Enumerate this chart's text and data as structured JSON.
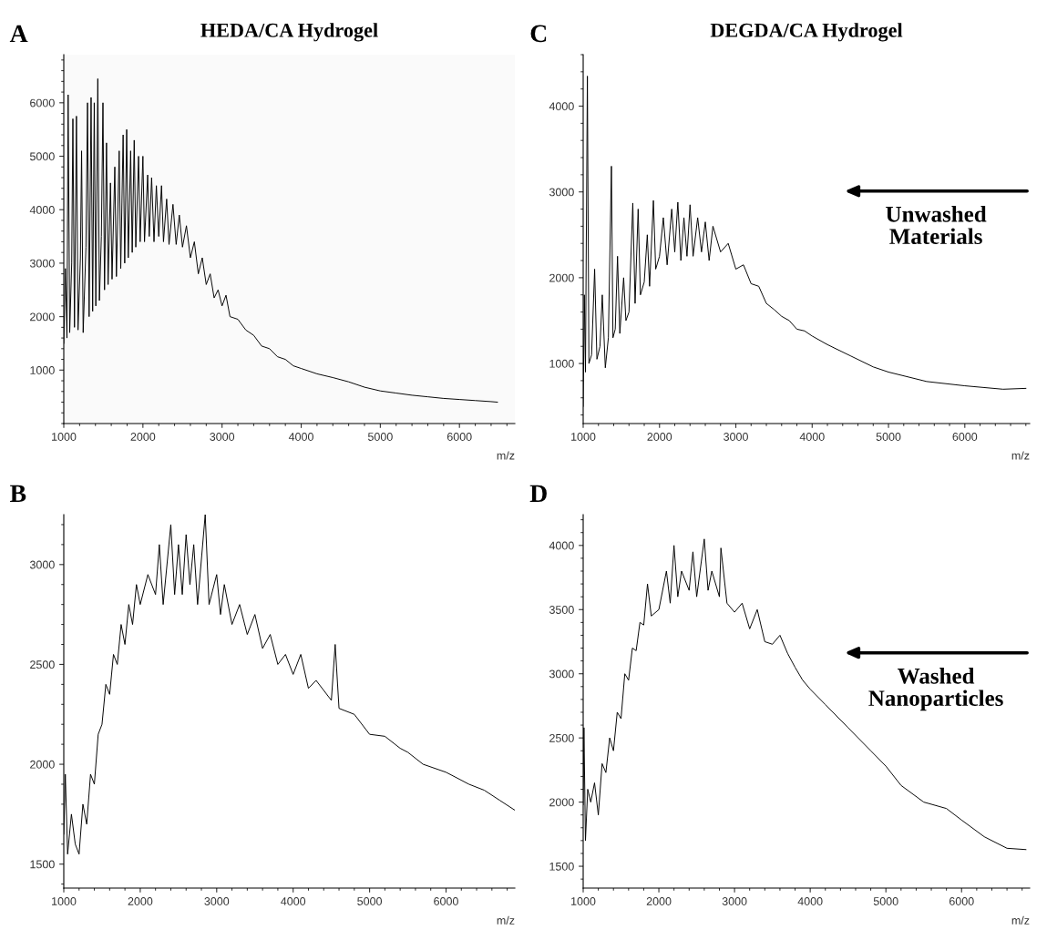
{
  "chart_data": [
    {
      "type": "line",
      "title": "HEDA/CA Hydrogel",
      "xlabel": "m/z",
      "annotations": [
        "A"
      ],
      "xlim": [
        1000,
        6700
      ],
      "ylim": [
        0,
        6900
      ],
      "xticks": [
        1000,
        2000,
        3000,
        4000,
        5000,
        6000
      ],
      "yticks": [
        1000,
        2000,
        3000,
        4000,
        5000,
        6000
      ],
      "x": [
        1000,
        1020,
        1040,
        1055,
        1075,
        1100,
        1115,
        1135,
        1160,
        1180,
        1210,
        1225,
        1245,
        1280,
        1300,
        1320,
        1345,
        1365,
        1385,
        1405,
        1430,
        1450,
        1475,
        1495,
        1515,
        1540,
        1560,
        1590,
        1610,
        1645,
        1665,
        1700,
        1720,
        1750,
        1770,
        1795,
        1815,
        1845,
        1865,
        1890,
        1910,
        1945,
        1965,
        2000,
        2020,
        2060,
        2080,
        2110,
        2140,
        2170,
        2200,
        2235,
        2260,
        2300,
        2330,
        2380,
        2420,
        2460,
        2500,
        2550,
        2600,
        2650,
        2700,
        2750,
        2800,
        2850,
        2900,
        2950,
        3000,
        3050,
        3100,
        3200,
        3300,
        3400,
        3500,
        3600,
        3700,
        3800,
        3900,
        4000,
        4200,
        4400,
        4600,
        4800,
        5000,
        5200,
        5400,
        5600,
        5800,
        6000,
        6200,
        6400,
        6480
      ],
      "series": [
        {
          "color": "#000000",
          "values": [
            1500,
            2900,
            1600,
            6150,
            1700,
            3000,
            5700,
            1800,
            5750,
            1750,
            3100,
            5100,
            1700,
            3300,
            6000,
            2000,
            6100,
            2100,
            6000,
            2200,
            6450,
            2300,
            3500,
            6000,
            2500,
            5250,
            2600,
            4500,
            2700,
            4800,
            2750,
            5100,
            2900,
            5400,
            3000,
            5500,
            3100,
            5100,
            3200,
            5300,
            3300,
            5000,
            3400,
            5000,
            3400,
            4650,
            3500,
            4600,
            3400,
            4450,
            3500,
            4450,
            3400,
            4200,
            3350,
            4100,
            3350,
            3900,
            3300,
            3700,
            3100,
            3400,
            2800,
            3100,
            2600,
            2800,
            2350,
            2500,
            2200,
            2400,
            2000,
            1950,
            1750,
            1650,
            1450,
            1400,
            1250,
            1200,
            1080,
            1030,
            930,
            860,
            780,
            680,
            610,
            570,
            530,
            500,
            470,
            450,
            430,
            410,
            400
          ]
        }
      ]
    },
    {
      "type": "line",
      "title": "DEGDA/CA Hydrogel",
      "xlabel": "m/z",
      "annotations": [
        "C",
        "Unwashed\nMaterials"
      ],
      "xlim": [
        1000,
        6850
      ],
      "ylim": [
        300,
        4600
      ],
      "xticks": [
        1000,
        2000,
        3000,
        4000,
        5000,
        6000
      ],
      "yticks": [
        1000,
        2000,
        3000,
        4000
      ],
      "x": [
        1000,
        1015,
        1030,
        1055,
        1075,
        1110,
        1150,
        1180,
        1220,
        1250,
        1290,
        1330,
        1370,
        1390,
        1420,
        1450,
        1480,
        1530,
        1560,
        1600,
        1650,
        1680,
        1720,
        1750,
        1800,
        1840,
        1870,
        1920,
        1950,
        2000,
        2050,
        2100,
        2160,
        2200,
        2240,
        2280,
        2320,
        2360,
        2400,
        2440,
        2500,
        2550,
        2600,
        2650,
        2700,
        2800,
        2900,
        3000,
        3100,
        3200,
        3300,
        3400,
        3500,
        3600,
        3700,
        3800,
        3900,
        4000,
        4200,
        4500,
        4800,
        5000,
        5500,
        6000,
        6500,
        6800
      ],
      "series": [
        {
          "color": "#000000",
          "values": [
            500,
            1800,
            900,
            4350,
            1000,
            1100,
            2100,
            1050,
            1200,
            1800,
            950,
            1300,
            3300,
            1300,
            1400,
            2250,
            1350,
            2000,
            1500,
            1600,
            2870,
            1700,
            2800,
            1800,
            1950,
            2500,
            1900,
            2900,
            2100,
            2250,
            2700,
            2150,
            2800,
            2300,
            2880,
            2200,
            2700,
            2250,
            2850,
            2250,
            2700,
            2300,
            2650,
            2200,
            2600,
            2300,
            2400,
            2100,
            2150,
            1930,
            1900,
            1700,
            1630,
            1550,
            1500,
            1400,
            1380,
            1320,
            1220,
            1090,
            960,
            900,
            790,
            740,
            700,
            710
          ]
        }
      ]
    },
    {
      "type": "line",
      "xlabel": "m/z",
      "annotations": [
        "B"
      ],
      "xlim": [
        1000,
        6900
      ],
      "ylim": [
        1380,
        3250
      ],
      "xticks": [
        1000,
        2000,
        3000,
        4000,
        5000,
        6000
      ],
      "yticks": [
        1500,
        2000,
        2500,
        3000
      ],
      "x": [
        1000,
        1020,
        1050,
        1100,
        1150,
        1200,
        1250,
        1300,
        1350,
        1400,
        1450,
        1500,
        1550,
        1600,
        1650,
        1700,
        1750,
        1800,
        1850,
        1900,
        1950,
        2000,
        2100,
        2200,
        2250,
        2300,
        2400,
        2450,
        2500,
        2550,
        2600,
        2650,
        2700,
        2750,
        2850,
        2900,
        3000,
        3050,
        3100,
        3200,
        3300,
        3400,
        3500,
        3600,
        3700,
        3800,
        3900,
        4000,
        4100,
        4200,
        4300,
        4500,
        4550,
        4600,
        4800,
        5000,
        5200,
        5400,
        5500,
        5700,
        6000,
        6300,
        6500,
        6700,
        6900
      ],
      "series": [
        {
          "color": "#000000",
          "values": [
            1650,
            1950,
            1550,
            1750,
            1600,
            1550,
            1800,
            1700,
            1950,
            1900,
            2150,
            2200,
            2400,
            2350,
            2550,
            2500,
            2700,
            2600,
            2800,
            2700,
            2900,
            2800,
            2950,
            2850,
            3100,
            2800,
            3200,
            2850,
            3100,
            2850,
            3150,
            2900,
            3100,
            2800,
            3250,
            2800,
            2950,
            2750,
            2900,
            2700,
            2800,
            2650,
            2750,
            2580,
            2650,
            2500,
            2550,
            2450,
            2550,
            2380,
            2420,
            2320,
            2600,
            2280,
            2250,
            2150,
            2140,
            2080,
            2060,
            2000,
            1960,
            1900,
            1870,
            1820,
            1770
          ]
        }
      ]
    },
    {
      "type": "line",
      "xlabel": "m/z",
      "annotations": [
        "D",
        "Washed\nNanoparticles"
      ],
      "xlim": [
        1000,
        6900
      ],
      "ylim": [
        1330,
        4240
      ],
      "xticks": [
        1000,
        2000,
        3000,
        4000,
        5000,
        6000
      ],
      "yticks": [
        1500,
        2000,
        2500,
        3000,
        3500,
        4000
      ],
      "x": [
        1000,
        1010,
        1030,
        1060,
        1100,
        1150,
        1200,
        1250,
        1300,
        1350,
        1400,
        1450,
        1500,
        1550,
        1600,
        1650,
        1700,
        1750,
        1800,
        1850,
        1900,
        2000,
        2100,
        2150,
        2200,
        2250,
        2300,
        2400,
        2450,
        2500,
        2600,
        2650,
        2700,
        2800,
        2820,
        2900,
        3000,
        3100,
        3200,
        3300,
        3400,
        3500,
        3600,
        3700,
        3800,
        3900,
        4000,
        4200,
        4500,
        4800,
        5000,
        5200,
        5500,
        5800,
        6000,
        6300,
        6600,
        6850
      ],
      "series": [
        {
          "color": "#000000",
          "values": [
            1980,
            2580,
            1700,
            2100,
            2000,
            2150,
            1900,
            2300,
            2230,
            2500,
            2400,
            2700,
            2650,
            3000,
            2950,
            3200,
            3180,
            3400,
            3380,
            3700,
            3450,
            3500,
            3800,
            3550,
            4000,
            3600,
            3800,
            3650,
            3950,
            3600,
            4050,
            3650,
            3800,
            3600,
            3980,
            3550,
            3480,
            3550,
            3350,
            3500,
            3250,
            3230,
            3300,
            3160,
            3050,
            2950,
            2880,
            2760,
            2580,
            2400,
            2280,
            2130,
            2000,
            1950,
            1860,
            1730,
            1640,
            1630
          ]
        }
      ]
    }
  ]
}
